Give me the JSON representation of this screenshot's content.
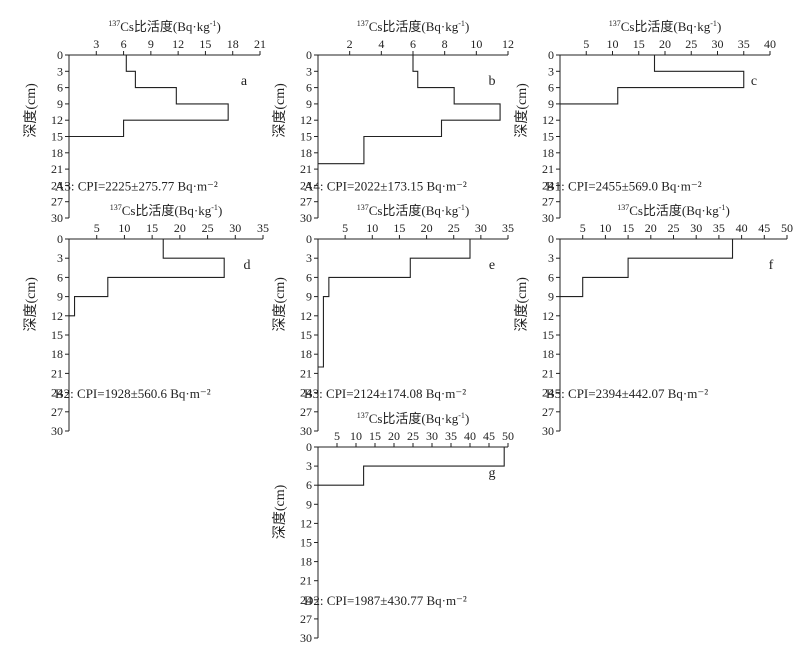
{
  "chart_data": [
    {
      "type": "line",
      "panel": "a",
      "xlabel": "137Cs比活度(Bq·kg-1)",
      "ylabel": "深度(cm)",
      "xlim": [
        0,
        21
      ],
      "x_ticks": [
        3,
        6,
        9,
        12,
        15,
        18,
        21
      ],
      "ylim": [
        0,
        30
      ],
      "y_ticks": [
        0,
        3,
        6,
        9,
        12,
        15,
        18,
        21,
        24,
        27,
        30
      ],
      "profile": [
        {
          "depth_top": 0,
          "depth_bottom": 3,
          "activity": 6.3
        },
        {
          "depth_top": 3,
          "depth_bottom": 6,
          "activity": 7.3
        },
        {
          "depth_top": 6,
          "depth_bottom": 9,
          "activity": 11.8
        },
        {
          "depth_top": 9,
          "depth_bottom": 12,
          "activity": 17.5
        },
        {
          "depth_top": 12,
          "depth_bottom": 15,
          "activity": 6.0
        }
      ],
      "annotation": "A3: CPI=2225±275.77 Bq·m⁻²"
    },
    {
      "type": "line",
      "panel": "b",
      "xlabel": "137Cs比活度(Bq·kg-1)",
      "ylabel": "深度(cm)",
      "xlim": [
        0,
        12
      ],
      "x_ticks": [
        2,
        4,
        6,
        8,
        10,
        12
      ],
      "ylim": [
        0,
        30
      ],
      "y_ticks": [
        0,
        3,
        6,
        9,
        12,
        15,
        18,
        21,
        24,
        27,
        30
      ],
      "profile": [
        {
          "depth_top": 0,
          "depth_bottom": 3,
          "activity": 6.0
        },
        {
          "depth_top": 3,
          "depth_bottom": 6,
          "activity": 6.3
        },
        {
          "depth_top": 6,
          "depth_bottom": 9,
          "activity": 8.6
        },
        {
          "depth_top": 9,
          "depth_bottom": 12,
          "activity": 11.5
        },
        {
          "depth_top": 12,
          "depth_bottom": 15,
          "activity": 7.8
        },
        {
          "depth_top": 15,
          "depth_bottom": 20,
          "activity": 2.9
        }
      ],
      "annotation": "A4: CPI=2022±173.15 Bq·m⁻²"
    },
    {
      "type": "line",
      "panel": "c",
      "xlabel": "137Cs比活度(Bq·kg-1)",
      "ylabel": "深度(cm)",
      "xlim": [
        0,
        40
      ],
      "x_ticks": [
        5,
        10,
        15,
        20,
        25,
        30,
        35,
        40
      ],
      "ylim": [
        0,
        30
      ],
      "y_ticks": [
        0,
        3,
        6,
        9,
        12,
        15,
        18,
        21,
        24,
        27,
        30
      ],
      "profile": [
        {
          "depth_top": 0,
          "depth_bottom": 3,
          "activity": 18.0
        },
        {
          "depth_top": 3,
          "depth_bottom": 6,
          "activity": 35.0
        },
        {
          "depth_top": 6,
          "depth_bottom": 9,
          "activity": 11.0
        }
      ],
      "annotation": "B1: CPI=2455±569.0 Bq·m⁻²"
    },
    {
      "type": "line",
      "panel": "d",
      "xlabel": "137Cs比活度(Bq·kg-1)",
      "ylabel": "深度(cm)",
      "xlim": [
        0,
        35
      ],
      "x_ticks": [
        5,
        10,
        15,
        20,
        25,
        30,
        35
      ],
      "ylim": [
        0,
        30
      ],
      "y_ticks": [
        0,
        3,
        6,
        9,
        12,
        15,
        18,
        21,
        24,
        27,
        30
      ],
      "profile": [
        {
          "depth_top": 0,
          "depth_bottom": 3,
          "activity": 17.0
        },
        {
          "depth_top": 3,
          "depth_bottom": 6,
          "activity": 28.0
        },
        {
          "depth_top": 6,
          "depth_bottom": 9,
          "activity": 7.0
        },
        {
          "depth_top": 9,
          "depth_bottom": 12,
          "activity": 1.0
        }
      ],
      "annotation": "B2: CPI=1928±560.6 Bq·m⁻²"
    },
    {
      "type": "line",
      "panel": "e",
      "xlabel": "137Cs比活度(Bq·kg-1)",
      "ylabel": "深度(cm)",
      "xlim": [
        0,
        35
      ],
      "x_ticks": [
        5,
        10,
        15,
        20,
        25,
        30,
        35
      ],
      "ylim": [
        0,
        30
      ],
      "y_ticks": [
        0,
        3,
        6,
        9,
        12,
        15,
        18,
        21,
        24,
        27,
        30
      ],
      "profile": [
        {
          "depth_top": 0,
          "depth_bottom": 3,
          "activity": 28.0
        },
        {
          "depth_top": 3,
          "depth_bottom": 6,
          "activity": 17.0
        },
        {
          "depth_top": 6,
          "depth_bottom": 9,
          "activity": 2.0
        },
        {
          "depth_top": 9,
          "depth_bottom": 20,
          "activity": 1.0
        }
      ],
      "annotation": "B3: CPI=2124±174.08 Bq·m⁻²"
    },
    {
      "type": "line",
      "panel": "f",
      "xlabel": "137Cs比活度(Bq·kg-1)",
      "ylabel": "深度(cm)",
      "xlim": [
        0,
        50
      ],
      "x_ticks": [
        5,
        10,
        15,
        20,
        25,
        30,
        35,
        40,
        45,
        50
      ],
      "ylim": [
        0,
        30
      ],
      "y_ticks": [
        0,
        3,
        6,
        9,
        12,
        15,
        18,
        21,
        24,
        27,
        30
      ],
      "profile": [
        {
          "depth_top": 0,
          "depth_bottom": 3,
          "activity": 38.0
        },
        {
          "depth_top": 3,
          "depth_bottom": 6,
          "activity": 15.0
        },
        {
          "depth_top": 6,
          "depth_bottom": 9,
          "activity": 5.0
        }
      ],
      "annotation": "B5: CPI=2394±442.07 Bq·m⁻²"
    },
    {
      "type": "line",
      "panel": "g",
      "xlabel": "137Cs比活度(Bq·kg-1)",
      "ylabel": "深度(cm)",
      "xlim": [
        0,
        50
      ],
      "x_ticks": [
        5,
        10,
        15,
        20,
        25,
        30,
        35,
        40,
        45,
        50
      ],
      "ylim": [
        0,
        30
      ],
      "y_ticks": [
        0,
        3,
        6,
        9,
        12,
        15,
        18,
        21,
        24,
        27,
        30
      ],
      "profile": [
        {
          "depth_top": 0,
          "depth_bottom": 3,
          "activity": 49.0
        },
        {
          "depth_top": 3,
          "depth_bottom": 6,
          "activity": 12.0
        }
      ],
      "annotation": "D2: CPI=1987±430.77 Bq·m⁻²"
    }
  ]
}
